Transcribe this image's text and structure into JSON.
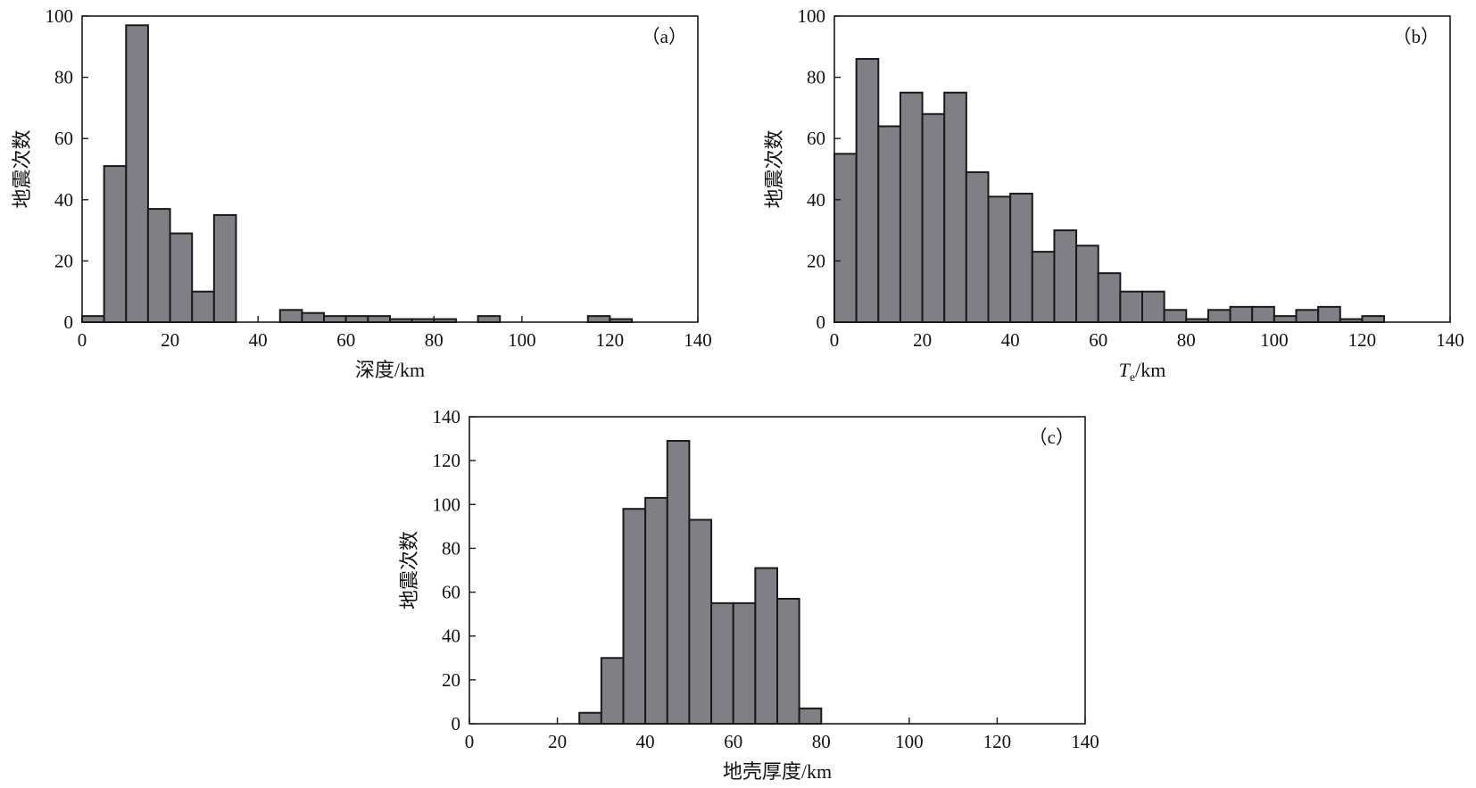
{
  "bar_color": "#7f7f85",
  "chart_data": [
    {
      "id": "a",
      "type": "bar",
      "panel_tag": "（a）",
      "xlabel": "深度/km",
      "ylabel": "地震次数",
      "xlim": [
        0,
        140
      ],
      "ylim": [
        0,
        100
      ],
      "xticks": [
        0,
        20,
        40,
        60,
        80,
        100,
        120,
        140
      ],
      "yticks": [
        0,
        20,
        40,
        60,
        80,
        100
      ],
      "bin_width": 5,
      "bins": [
        {
          "x": 0,
          "count": 2
        },
        {
          "x": 5,
          "count": 51
        },
        {
          "x": 10,
          "count": 97
        },
        {
          "x": 15,
          "count": 37
        },
        {
          "x": 20,
          "count": 29
        },
        {
          "x": 25,
          "count": 10
        },
        {
          "x": 30,
          "count": 35
        },
        {
          "x": 45,
          "count": 4
        },
        {
          "x": 50,
          "count": 3
        },
        {
          "x": 55,
          "count": 2
        },
        {
          "x": 60,
          "count": 2
        },
        {
          "x": 65,
          "count": 2
        },
        {
          "x": 70,
          "count": 1
        },
        {
          "x": 75,
          "count": 1
        },
        {
          "x": 80,
          "count": 1
        },
        {
          "x": 90,
          "count": 2
        },
        {
          "x": 115,
          "count": 2
        },
        {
          "x": 120,
          "count": 1
        }
      ]
    },
    {
      "id": "b",
      "type": "bar",
      "panel_tag": "（b）",
      "xlabel_main": "T",
      "xlabel_sub": "e",
      "xlabel_unit": "/km",
      "ylabel": "地震次数",
      "xlim": [
        0,
        140
      ],
      "ylim": [
        0,
        100
      ],
      "xticks": [
        0,
        20,
        40,
        60,
        80,
        100,
        120,
        140
      ],
      "yticks": [
        0,
        20,
        40,
        60,
        80,
        100
      ],
      "bin_width": 5,
      "bins": [
        {
          "x": 0,
          "count": 55
        },
        {
          "x": 5,
          "count": 86
        },
        {
          "x": 10,
          "count": 64
        },
        {
          "x": 15,
          "count": 75
        },
        {
          "x": 20,
          "count": 68
        },
        {
          "x": 25,
          "count": 75
        },
        {
          "x": 30,
          "count": 49
        },
        {
          "x": 35,
          "count": 41
        },
        {
          "x": 40,
          "count": 42
        },
        {
          "x": 45,
          "count": 23
        },
        {
          "x": 50,
          "count": 30
        },
        {
          "x": 55,
          "count": 25
        },
        {
          "x": 60,
          "count": 16
        },
        {
          "x": 65,
          "count": 10
        },
        {
          "x": 70,
          "count": 10
        },
        {
          "x": 75,
          "count": 4
        },
        {
          "x": 80,
          "count": 1
        },
        {
          "x": 85,
          "count": 4
        },
        {
          "x": 90,
          "count": 5
        },
        {
          "x": 95,
          "count": 5
        },
        {
          "x": 100,
          "count": 2
        },
        {
          "x": 105,
          "count": 4
        },
        {
          "x": 110,
          "count": 5
        },
        {
          "x": 115,
          "count": 1
        },
        {
          "x": 120,
          "count": 2
        }
      ]
    },
    {
      "id": "c",
      "type": "bar",
      "panel_tag": "（c）",
      "xlabel": "地壳厚度/km",
      "ylabel": "地震次数",
      "xlim": [
        0,
        140
      ],
      "ylim": [
        0,
        140
      ],
      "xticks": [
        0,
        20,
        40,
        60,
        80,
        100,
        120,
        140
      ],
      "yticks": [
        0,
        20,
        40,
        60,
        80,
        100,
        120,
        140
      ],
      "bin_width": 5,
      "bins": [
        {
          "x": 25,
          "count": 5
        },
        {
          "x": 30,
          "count": 30
        },
        {
          "x": 35,
          "count": 98
        },
        {
          "x": 40,
          "count": 103
        },
        {
          "x": 45,
          "count": 129
        },
        {
          "x": 50,
          "count": 93
        },
        {
          "x": 55,
          "count": 55
        },
        {
          "x": 60,
          "count": 55
        },
        {
          "x": 65,
          "count": 71
        },
        {
          "x": 70,
          "count": 57
        },
        {
          "x": 75,
          "count": 7
        }
      ]
    }
  ]
}
